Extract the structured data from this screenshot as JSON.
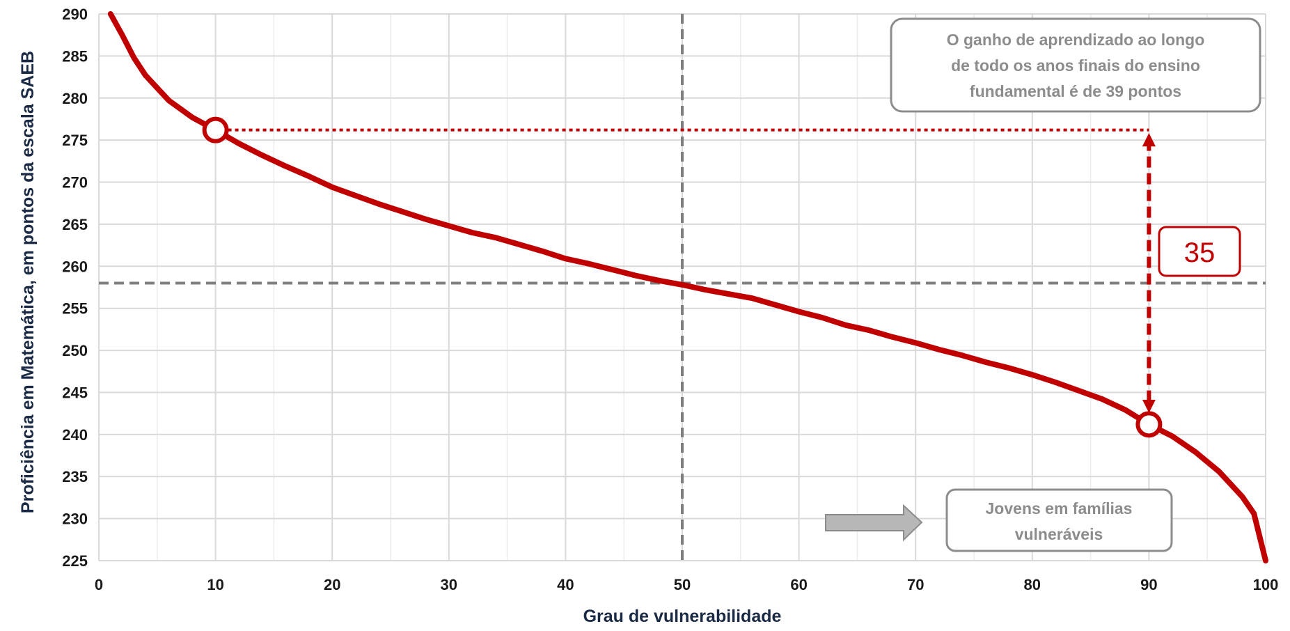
{
  "chart_data": {
    "type": "line",
    "xlabel": "Grau de vulnerabilidade",
    "ylabel": "Proficiência em Matemática, em pontos da escala SAEB",
    "xlim": [
      0,
      100
    ],
    "ylim": [
      225,
      290
    ],
    "x_ticks": [
      0,
      10,
      20,
      30,
      40,
      50,
      60,
      70,
      80,
      90,
      100
    ],
    "y_ticks": [
      225,
      230,
      235,
      240,
      245,
      250,
      255,
      260,
      265,
      270,
      275,
      280,
      285,
      290
    ],
    "grid": true,
    "line_color": "#c00000",
    "series": [
      {
        "x": [
          1,
          2,
          3,
          4,
          6,
          8,
          10,
          12,
          14,
          16,
          18,
          20,
          22,
          24,
          26,
          28,
          30,
          32,
          34,
          36,
          38,
          40,
          42,
          44,
          46,
          48,
          50,
          52,
          54,
          56,
          58,
          60,
          62,
          64,
          66,
          68,
          70,
          72,
          74,
          76,
          78,
          80,
          82,
          84,
          86,
          88,
          90,
          92,
          94,
          96,
          98,
          99,
          100
        ],
        "y": [
          290,
          287.5,
          284.8,
          282.7,
          279.7,
          277.7,
          276.2,
          274.6,
          273.2,
          271.9,
          270.7,
          269.4,
          268.4,
          267.4,
          266.5,
          265.6,
          264.8,
          264.0,
          263.4,
          262.6,
          261.8,
          260.9,
          260.3,
          259.6,
          258.9,
          258.3,
          257.8,
          257.2,
          256.7,
          256.2,
          255.4,
          254.6,
          253.9,
          253.0,
          252.4,
          251.6,
          250.9,
          250.1,
          249.4,
          248.6,
          247.9,
          247.1,
          246.2,
          245.2,
          244.2,
          242.9,
          241.2,
          239.8,
          237.9,
          235.6,
          232.6,
          230.6,
          225
        ]
      }
    ],
    "reference_lines": {
      "x": 50,
      "y": 258
    },
    "markers": [
      {
        "x": 10,
        "y": 276.2
      },
      {
        "x": 90,
        "y": 241.2
      }
    ],
    "annotation_box": "O ganho de aprendizado ao longo de todo os anos finais do ensino fundamental é de  39 pontos",
    "annotation_lines": [
      "O ganho de aprendizado ao longo",
      "de todo os anos finais do ensino",
      "fundamental é de  39 pontos"
    ],
    "gain_label": "35",
    "vulnerable_label_lines": [
      "Jovens em famílias",
      "vulneráveis"
    ]
  }
}
